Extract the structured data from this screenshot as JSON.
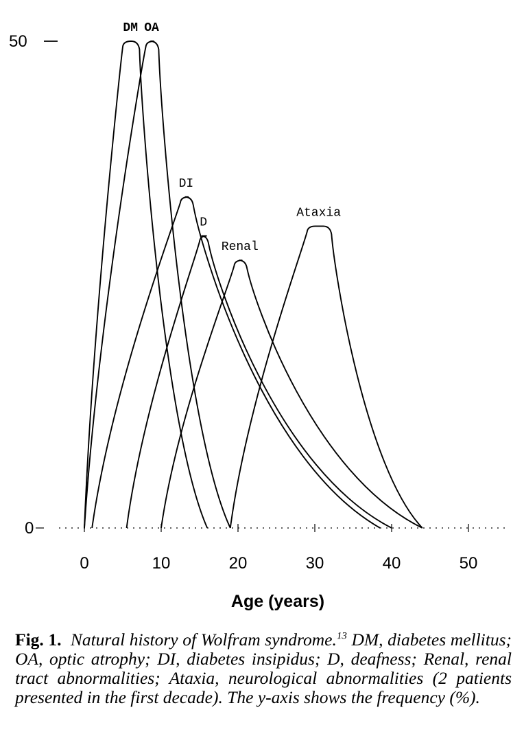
{
  "chart_data": {
    "type": "line",
    "xlabel": "Age (years)",
    "ylabel": "",
    "xlim": [
      0,
      55
    ],
    "ylim": [
      0,
      50
    ],
    "x_ticks": [
      0,
      10,
      20,
      30,
      40,
      50
    ],
    "y_ticks": [
      0,
      50
    ],
    "y_tick_labels": [
      "0",
      "50"
    ],
    "grid": false,
    "legend": "none",
    "series": [
      {
        "name": "DM",
        "start": 0,
        "peak_start": 5,
        "peak_end": 7,
        "peak": 50,
        "end": 16
      },
      {
        "name": "OA",
        "start": 0,
        "peak_start": 8,
        "peak_end": 9.5,
        "peak": 50,
        "end": 19
      },
      {
        "name": "DI",
        "start": 1,
        "peak_start": 12.5,
        "peak_end": 14,
        "peak": 34,
        "end": 38.5
      },
      {
        "name": "D",
        "start": 5.5,
        "peak_start": 15,
        "peak_end": 16,
        "peak": 30,
        "end": 40
      },
      {
        "name": "Renal",
        "start": 10,
        "peak_start": 19.5,
        "peak_end": 21,
        "peak": 27.5,
        "end": 44
      },
      {
        "name": "Ataxia",
        "start": 19,
        "peak_start": 29,
        "peak_end": 32,
        "peak": 31,
        "end": 44
      }
    ]
  },
  "caption": {
    "lead": "Fig. 1.",
    "text_a": "Natural history of Wolfram syndrome.",
    "ref": "13",
    "text_b": "DM, diabetes mellitus; OA, optic atrophy; DI, diabetes insipidus; D, deafness; Renal, renal tract abnormalities; Ataxia, neurological abnormalities (2 patients presented in the first decade). The y-axis shows the frequency (%)."
  }
}
